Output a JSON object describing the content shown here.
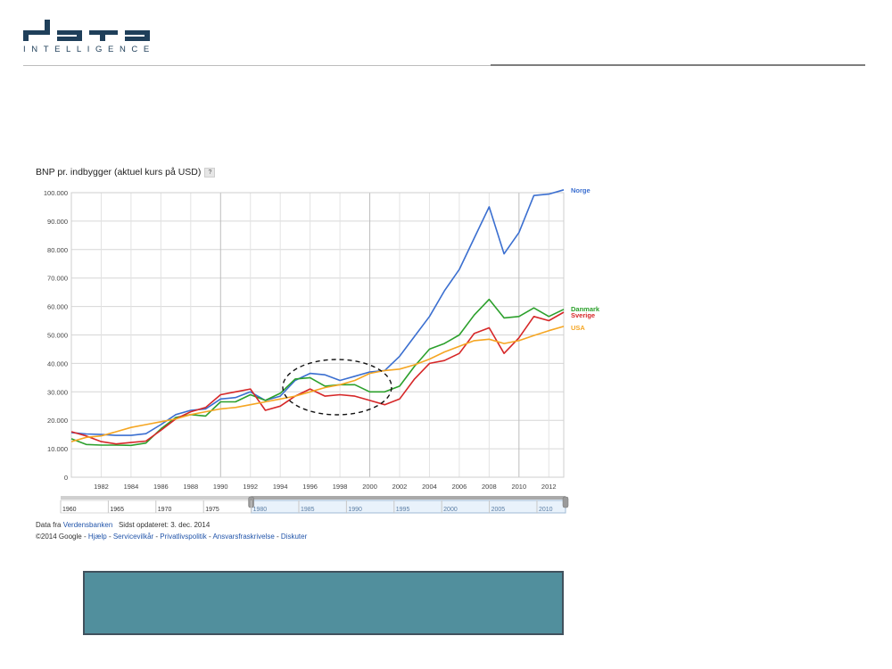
{
  "logo": {
    "wordmark": "data",
    "subtitle": "INTELLIGENCE",
    "color": "#1f3f5a"
  },
  "chart_data": {
    "type": "line",
    "title": "BNP pr. indbygger (aktuel kurs på USD)",
    "help_badge": "?",
    "x": [
      1980,
      1981,
      1982,
      1983,
      1984,
      1985,
      1986,
      1987,
      1988,
      1989,
      1990,
      1991,
      1992,
      1993,
      1994,
      1995,
      1996,
      1997,
      1998,
      1999,
      2000,
      2001,
      2002,
      2003,
      2004,
      2005,
      2006,
      2007,
      2008,
      2009,
      2010,
      2011,
      2012,
      2013
    ],
    "xlim": [
      1980,
      2013
    ],
    "ylim": [
      0,
      100000
    ],
    "x_ticks": [
      "1982",
      "1984",
      "1986",
      "1988",
      "1990",
      "1992",
      "1994",
      "1996",
      "1998",
      "2000",
      "2002",
      "2004",
      "2006",
      "2008",
      "2010",
      "2012"
    ],
    "y_ticks": [
      "0",
      "10.000",
      "20.000",
      "30.000",
      "40.000",
      "50.000",
      "60.000",
      "70.000",
      "80.000",
      "90.000",
      "100.000"
    ],
    "grid": true,
    "legend": "right, end of lines",
    "series": [
      {
        "name": "Norge",
        "color": "#3b6fd0",
        "values": [
          15700,
          15200,
          15000,
          14700,
          14700,
          15300,
          18500,
          22000,
          23500,
          24000,
          27500,
          28000,
          30000,
          27000,
          28500,
          34000,
          36500,
          36000,
          34000,
          35500,
          37000,
          37500,
          42500,
          49500,
          56500,
          65500,
          73000,
          84000,
          95000,
          78500,
          86000,
          99000,
          99500,
          101000
        ]
      },
      {
        "name": "Danmark",
        "color": "#2ca02c",
        "values": [
          13500,
          11500,
          11300,
          11300,
          11200,
          12000,
          17000,
          21000,
          22000,
          21500,
          26500,
          26500,
          29000,
          27000,
          29500,
          34500,
          35000,
          32000,
          32500,
          32500,
          30000,
          30000,
          32000,
          39000,
          45000,
          47000,
          50000,
          57000,
          62500,
          56000,
          56500,
          59500,
          56500,
          59000
        ]
      },
      {
        "name": "Sverige",
        "color": "#d62728",
        "values": [
          16000,
          14500,
          12500,
          11700,
          12200,
          12700,
          16500,
          20500,
          23000,
          24500,
          29000,
          30000,
          31000,
          23500,
          25000,
          28500,
          31000,
          28500,
          29000,
          28500,
          27000,
          25500,
          27500,
          34500,
          40000,
          41000,
          43500,
          50500,
          52500,
          43500,
          49000,
          56500,
          55000,
          58000
        ]
      },
      {
        "name": "USA",
        "color": "#f5a623",
        "values": [
          12500,
          14000,
          14500,
          16000,
          17500,
          18500,
          19500,
          20500,
          22000,
          23000,
          24000,
          24500,
          25500,
          26500,
          27500,
          28500,
          30000,
          31500,
          32500,
          34000,
          36500,
          37500,
          38000,
          39500,
          41500,
          44000,
          46000,
          48000,
          48500,
          47000,
          48000,
          49800,
          51500,
          53000
        ]
      }
    ]
  },
  "range_navigator": {
    "labels": [
      "1960",
      "1965",
      "1970",
      "1975",
      "1980",
      "1985",
      "1990",
      "1995",
      "2000",
      "2005",
      "2010"
    ],
    "range_start": 1980,
    "range_end": 2013,
    "full_start": 1960,
    "full_end": 2013
  },
  "footer": {
    "source_prefix": "Data fra ",
    "source_link": "Verdensbanken",
    "updated": "Sidst opdateret: 3. dec. 2014",
    "copyright": "©2014 Google",
    "sep": " - ",
    "links": [
      "Hjælp",
      "Servicevilkår",
      "Privatlivspolitik",
      "Ansvarsfraskrivelse",
      "Diskuter"
    ]
  },
  "colors": {
    "teal_box": "#518f9d",
    "teal_border": "#41515d"
  }
}
